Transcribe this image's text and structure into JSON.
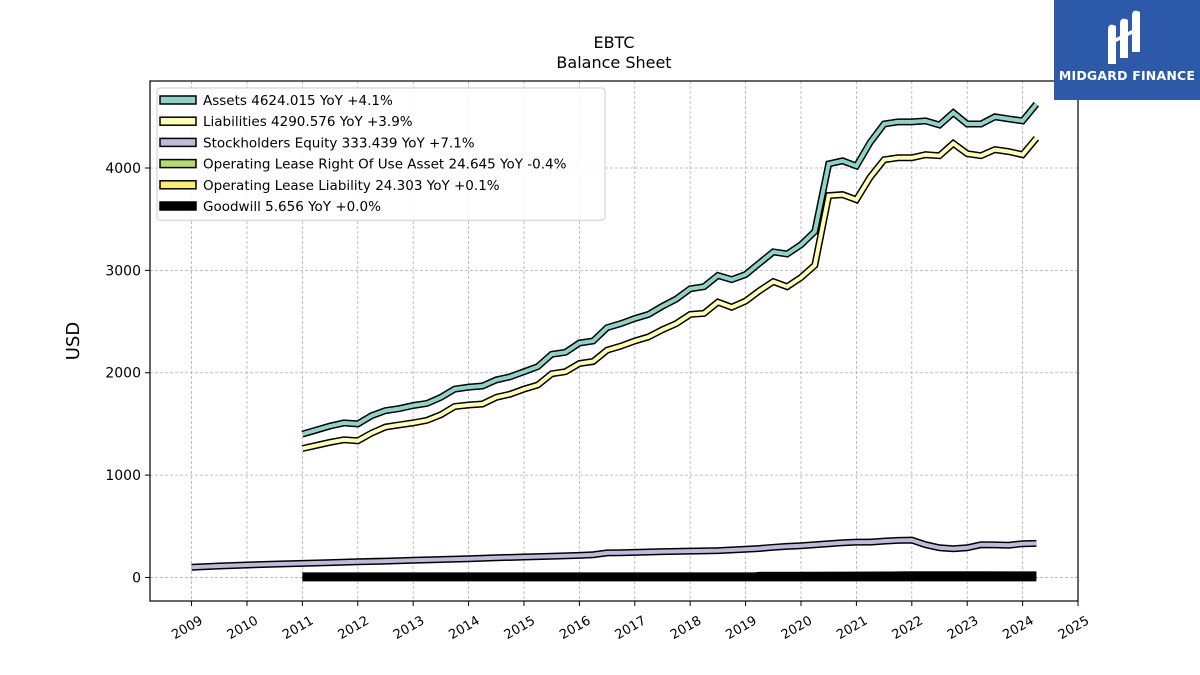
{
  "brand": {
    "name": "MIDGARD FINANCE",
    "bg_color": "#2d5aa8",
    "icon": "midgard-logo-icon"
  },
  "chart_data": {
    "type": "line",
    "title": "EBTC",
    "subtitle": "Balance  Sheet",
    "ylabel": "USD",
    "xlabel": "",
    "ylim": [
      -230,
      4850
    ],
    "xlim": [
      2008.25,
      2025.0
    ],
    "yticks": [
      0,
      1000,
      2000,
      3000,
      4000
    ],
    "xticks": [
      "2009",
      "2010",
      "2011",
      "2012",
      "2013",
      "2014",
      "2015",
      "2016",
      "2017",
      "2018",
      "2019",
      "2020",
      "2021",
      "2022",
      "2023",
      "2024",
      "2025"
    ],
    "grid": true,
    "legend_position": "top-left",
    "series": [
      {
        "name": "Assets  4624.015 YoY +4.1%",
        "color": "#8dd3c7",
        "x": [
          2011.0,
          2011.25,
          2011.5,
          2011.75,
          2012.0,
          2012.25,
          2012.5,
          2012.75,
          2013.0,
          2013.25,
          2013.5,
          2013.75,
          2014.0,
          2014.25,
          2014.5,
          2014.75,
          2015.0,
          2015.25,
          2015.5,
          2015.75,
          2016.0,
          2016.25,
          2016.5,
          2016.75,
          2017.0,
          2017.25,
          2017.5,
          2017.75,
          2018.0,
          2018.25,
          2018.5,
          2018.75,
          2019.0,
          2019.25,
          2019.5,
          2019.75,
          2020.0,
          2020.25,
          2020.5,
          2020.75,
          2021.0,
          2021.25,
          2021.5,
          2021.75,
          2022.0,
          2022.25,
          2022.5,
          2022.75,
          2023.0,
          2023.25,
          2023.5,
          2023.75,
          2024.0,
          2024.25
        ],
        "values": [
          1400,
          1440,
          1480,
          1510,
          1500,
          1580,
          1630,
          1650,
          1680,
          1700,
          1760,
          1840,
          1860,
          1870,
          1930,
          1960,
          2010,
          2060,
          2180,
          2200,
          2290,
          2310,
          2440,
          2480,
          2530,
          2570,
          2650,
          2720,
          2820,
          2840,
          2950,
          2910,
          2960,
          3070,
          3180,
          3160,
          3250,
          3380,
          4040,
          4070,
          4020,
          4250,
          4430,
          4450,
          4450,
          4460,
          4420,
          4540,
          4430,
          4430,
          4500,
          4480,
          4460,
          4624
        ]
      },
      {
        "name": "Liabilities  4290.576 YoY +3.9%",
        "color": "#ffffb3",
        "x": [
          2011.0,
          2011.25,
          2011.5,
          2011.75,
          2012.0,
          2012.25,
          2012.5,
          2012.75,
          2013.0,
          2013.25,
          2013.5,
          2013.75,
          2014.0,
          2014.25,
          2014.5,
          2014.75,
          2015.0,
          2015.25,
          2015.5,
          2015.75,
          2016.0,
          2016.25,
          2016.5,
          2016.75,
          2017.0,
          2017.25,
          2017.5,
          2017.75,
          2018.0,
          2018.25,
          2018.5,
          2018.75,
          2019.0,
          2019.25,
          2019.5,
          2019.75,
          2020.0,
          2020.25,
          2020.5,
          2020.75,
          2021.0,
          2021.25,
          2021.5,
          2021.75,
          2022.0,
          2022.25,
          2022.5,
          2022.75,
          2023.0,
          2023.25,
          2023.5,
          2023.75,
          2024.0,
          2024.25
        ],
        "values": [
          1260,
          1290,
          1320,
          1345,
          1335,
          1410,
          1470,
          1490,
          1510,
          1535,
          1590,
          1670,
          1685,
          1695,
          1760,
          1790,
          1840,
          1880,
          1990,
          2010,
          2090,
          2110,
          2220,
          2260,
          2310,
          2350,
          2420,
          2480,
          2570,
          2580,
          2690,
          2640,
          2700,
          2800,
          2890,
          2840,
          2930,
          3050,
          3730,
          3740,
          3690,
          3910,
          4080,
          4100,
          4100,
          4130,
          4120,
          4240,
          4140,
          4120,
          4180,
          4160,
          4130,
          4291
        ]
      },
      {
        "name": "Stockholders Equity  333.439 YoY +7.1%",
        "color": "#bebada",
        "x": [
          2009.0,
          2009.5,
          2010.0,
          2010.5,
          2011.0,
          2011.5,
          2012.0,
          2012.5,
          2013.0,
          2013.5,
          2014.0,
          2014.5,
          2015.0,
          2015.5,
          2016.0,
          2016.25,
          2016.5,
          2016.75,
          2017.0,
          2017.5,
          2018.0,
          2018.5,
          2019.0,
          2019.25,
          2019.5,
          2019.75,
          2020.0,
          2020.25,
          2020.5,
          2020.75,
          2021.0,
          2021.25,
          2021.5,
          2021.75,
          2022.0,
          2022.25,
          2022.5,
          2022.75,
          2023.0,
          2023.25,
          2023.5,
          2023.75,
          2024.0,
          2024.25
        ],
        "values": [
          100,
          112,
          122,
          130,
          137,
          145,
          153,
          160,
          168,
          175,
          183,
          192,
          200,
          207,
          215,
          222,
          240,
          242,
          245,
          253,
          257,
          262,
          275,
          283,
          295,
          303,
          310,
          320,
          330,
          340,
          345,
          345,
          355,
          362,
          365,
          320,
          290,
          280,
          290,
          320,
          318,
          315,
          330,
          333
        ]
      },
      {
        "name": "Operating Lease Right Of Use Asset  24.645 YoY -0.4%",
        "color": "#b3de69",
        "x": [
          2019.0,
          2019.25,
          2020.0,
          2021.0,
          2022.0,
          2023.0,
          2024.0,
          2024.25
        ],
        "values": [
          0,
          20,
          20,
          22,
          25,
          25,
          25,
          24.645
        ]
      },
      {
        "name": "Operating Lease Liability  24.303 YoY +0.1%",
        "color": "#ffed6f",
        "x": [
          2019.0,
          2019.25,
          2020.0,
          2021.0,
          2022.0,
          2023.0,
          2024.0,
          2024.25
        ],
        "values": [
          0,
          20,
          20,
          22,
          25,
          25,
          24,
          24.303
        ]
      },
      {
        "name": "Goodwill  5.656 YoY +0.0%",
        "color": "#000000",
        "x": [
          2011.0,
          2024.25
        ],
        "values": [
          5.656,
          5.656
        ]
      }
    ]
  }
}
